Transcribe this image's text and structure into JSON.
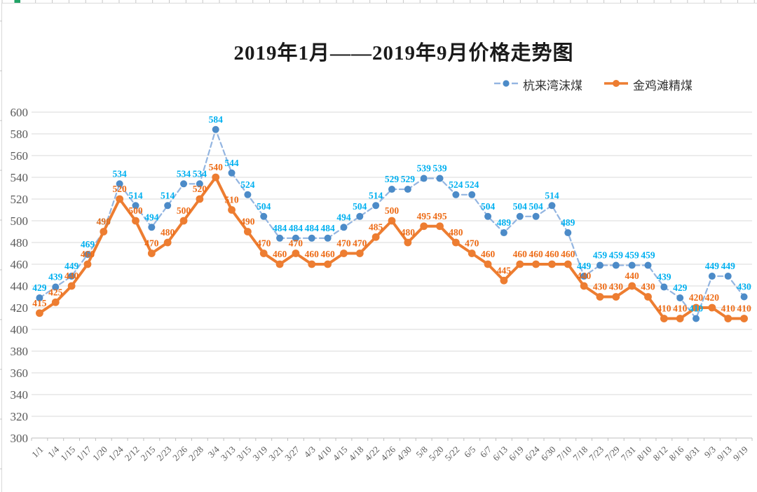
{
  "title": "2019年1月——2019年9月价格走势图",
  "legend": {
    "items": [
      {
        "label": "杭来湾沫煤"
      },
      {
        "label": "金鸡滩精煤"
      }
    ]
  },
  "chart_data": {
    "type": "line",
    "title": "2019年1月——2019年9月价格走势图",
    "categories": [
      "1/1",
      "1/4",
      "1/15",
      "1/17",
      "1/20",
      "1/24",
      "2/12",
      "2/15",
      "2/23",
      "2/26",
      "2/28",
      "3/4",
      "3/13",
      "3/15",
      "3/19",
      "3/21",
      "3/27",
      "4/3",
      "4/10",
      "4/15",
      "4/18",
      "4/22",
      "4/26",
      "4/30",
      "5/8",
      "5/20",
      "5/22",
      "6/5",
      "6/7",
      "6/13",
      "6/19",
      "6/24",
      "6/30",
      "7/10",
      "7/18",
      "7/23",
      "7/29",
      "7/31",
      "8/10",
      "8/12",
      "8/16",
      "8/31",
      "9/3",
      "9/13",
      "9/19"
    ],
    "series": [
      {
        "name": "杭来湾沫煤",
        "style": "dashed",
        "line_color": "#93B5E1",
        "marker_color": "#4C8BC8",
        "label_color": "#00B0F0",
        "values": [
          429,
          439,
          449,
          469,
          490,
          534,
          514,
          494,
          514,
          534,
          534,
          584,
          544,
          524,
          504,
          484,
          484,
          484,
          484,
          494,
          504,
          514,
          529,
          529,
          539,
          539,
          524,
          524,
          504,
          489,
          504,
          504,
          514,
          489,
          449,
          459,
          459,
          459,
          459,
          439,
          429,
          410,
          449,
          449,
          430
        ]
      },
      {
        "name": "金鸡滩精煤",
        "style": "solid",
        "line_color": "#ED7D31",
        "marker_color": "#ED7D31",
        "label_color": "#ED6C17",
        "values": [
          415,
          425,
          440,
          460,
          490,
          520,
          500,
          470,
          480,
          500,
          520,
          540,
          510,
          490,
          470,
          460,
          470,
          460,
          460,
          470,
          470,
          485,
          500,
          480,
          495,
          495,
          480,
          470,
          460,
          445,
          460,
          460,
          460,
          460,
          440,
          430,
          430,
          440,
          430,
          410,
          410,
          420,
          420,
          410,
          410
        ]
      }
    ],
    "ylabel": "",
    "xlabel": "",
    "ylim": [
      300,
      600
    ],
    "ytick_step": 20,
    "grid": true,
    "legend_position": "top-right",
    "axis_text_color": "#595959",
    "grid_color": "#D9D9D9",
    "axis_line_color": "#BFBFBF"
  }
}
